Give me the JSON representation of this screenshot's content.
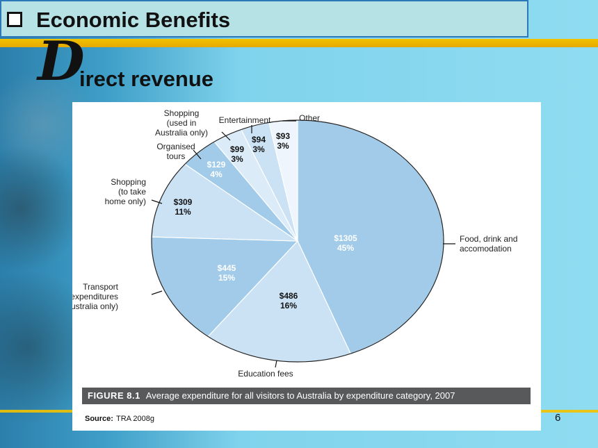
{
  "slide": {
    "title": "Economic Benefits",
    "subtitle_dropcap": "D",
    "subtitle_rest": "irect revenue",
    "page_number": "6"
  },
  "figure": {
    "caption_label": "FIGURE 8.1",
    "caption_text": "Average expenditure for all visitors to Australia by expenditure category, 2007",
    "source_label": "Source:",
    "source_text": "TRA 2008g"
  },
  "chart_data": {
    "type": "pie",
    "unit": "$",
    "slices": [
      {
        "label": [
          "Food, drink and",
          "accomodation"
        ],
        "value": 1305,
        "percent": 45,
        "value_text": "$1305",
        "percent_text": "45%",
        "color": "#a1cbe9"
      },
      {
        "label": [
          "Education fees"
        ],
        "value": 486,
        "percent": 16,
        "value_text": "$486",
        "percent_text": "16%",
        "color": "#cbe2f5"
      },
      {
        "label": [
          "Transport",
          "(expenditures",
          "in Australia only)"
        ],
        "value": 445,
        "percent": 15,
        "value_text": "$445",
        "percent_text": "15%",
        "color": "#a1cbe9"
      },
      {
        "label": [
          "Shopping",
          "(to take",
          "home only)"
        ],
        "value": 309,
        "percent": 11,
        "value_text": "$309",
        "percent_text": "11%",
        "color": "#cbe2f5"
      },
      {
        "label": [
          "Organised",
          "tours"
        ],
        "value": 129,
        "percent": 4,
        "value_text": "$129",
        "percent_text": "4%",
        "color": "#a1cbe9"
      },
      {
        "label": [
          "Shopping",
          "(used in",
          "Australia only)"
        ],
        "value": 99,
        "percent": 3,
        "value_text": "$99",
        "percent_text": "3%",
        "color": "#dcebf8"
      },
      {
        "label": [
          "Entertainment"
        ],
        "value": 94,
        "percent": 3,
        "value_text": "$94",
        "percent_text": "3%",
        "color": "#cbe2f5"
      },
      {
        "label": [
          "Other"
        ],
        "value": 93,
        "percent": 3,
        "value_text": "$93",
        "percent_text": "3%",
        "color": "#eef5fc"
      }
    ]
  }
}
